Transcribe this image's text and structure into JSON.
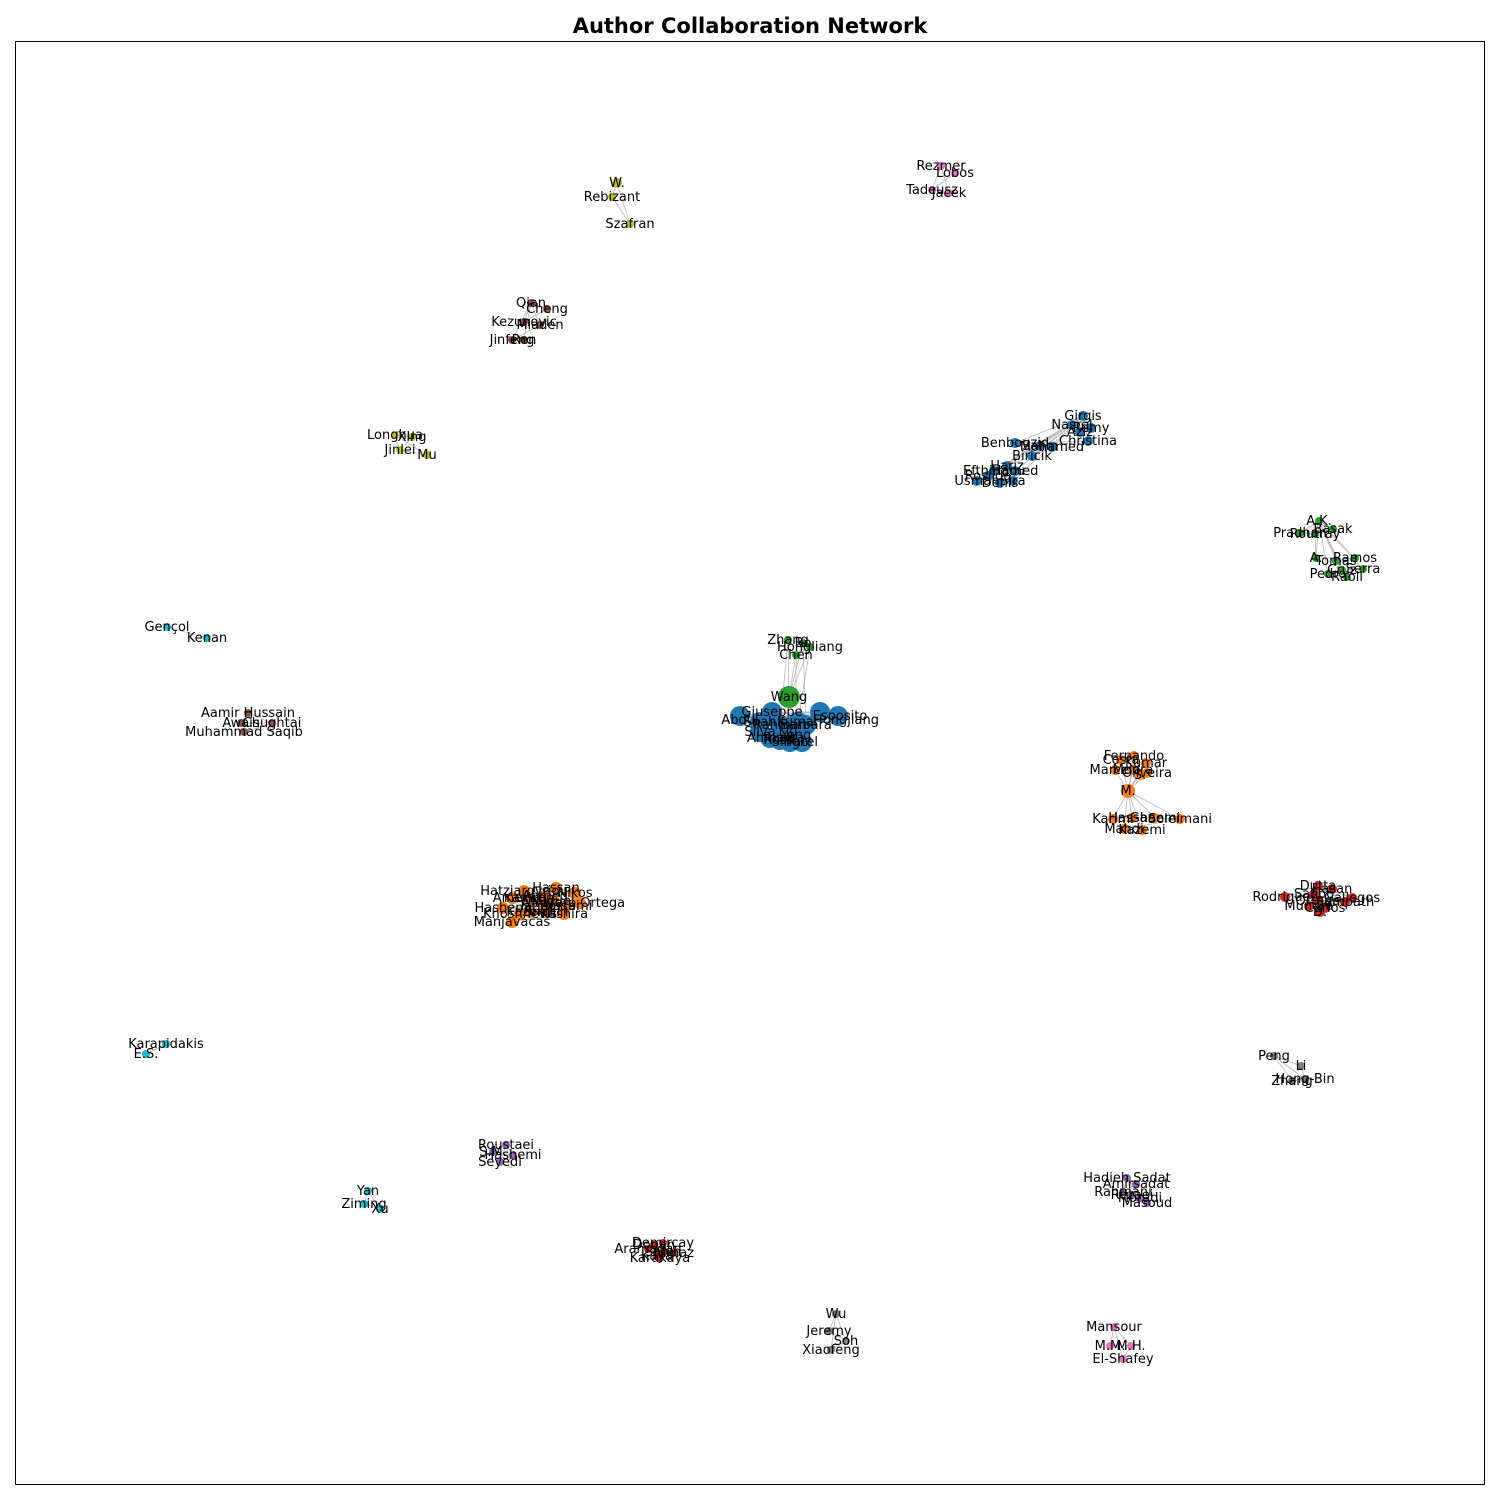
{
  "figure": {
    "title": "Author Collaboration Network"
  },
  "palette": {
    "blue": "#1f77b4",
    "orange": "#ff7f0e",
    "green": "#2ca02c",
    "red": "#d62728",
    "purple": "#9467bd",
    "brown": "#8c564b",
    "pink": "#e377c2",
    "gray": "#7f7f7f",
    "olive": "#bcbd22",
    "cyan": "#17becf",
    "edge": "#b8b8b8",
    "frame": "#000000"
  },
  "clusters": [
    {
      "id": "c-w-rebizant",
      "color": "olive",
      "nodes": [
        {
          "label": "W.",
          "hub": true
        },
        {
          "label": "Rebizant"
        },
        {
          "label": "Szafran"
        }
      ]
    },
    {
      "id": "c-rezmer",
      "color": "pink",
      "nodes": [
        {
          "label": "Rezmer"
        },
        {
          "label": "Lobos"
        },
        {
          "label": "Tadeusz"
        },
        {
          "label": "Jacek"
        }
      ]
    },
    {
      "id": "c-qian",
      "color": "brown",
      "nodes": [
        {
          "label": "Qian"
        },
        {
          "label": "Cheng"
        },
        {
          "label": "Kezunovic"
        },
        {
          "label": "Mladen"
        },
        {
          "label": "Jinfeng"
        },
        {
          "label": "Ren"
        }
      ]
    },
    {
      "id": "c-girgis",
      "color": "blue",
      "nodes": [
        {
          "label": "Girgis"
        },
        {
          "label": "Nasrel"
        },
        {
          "label": "Aziz"
        },
        {
          "label": "Remy"
        },
        {
          "label": "Christina"
        },
        {
          "label": "Benbouzid"
        },
        {
          "label": "Salim"
        },
        {
          "label": "Mohamed"
        },
        {
          "label": "Biricik"
        },
        {
          "label": "Hariz"
        },
        {
          "label": "Efthimiou"
        },
        {
          "label": "Hamed"
        },
        {
          "label": "Rosilda"
        },
        {
          "label": "Usman"
        },
        {
          "label": "Sira"
        },
        {
          "label": "Denis"
        }
      ]
    },
    {
      "id": "c-longhua",
      "color": "olive",
      "nodes": [
        {
          "label": "Longhua"
        },
        {
          "label": "Xing"
        },
        {
          "label": "Jinlei"
        },
        {
          "label": "Mu"
        }
      ]
    },
    {
      "id": "c-ak",
      "color": "green",
      "nodes": [
        {
          "label": "A.K."
        },
        {
          "label": "Basak"
        },
        {
          "label": "Pradhan"
        },
        {
          "label": "Routray"
        },
        {
          "label": "A."
        },
        {
          "label": "Ramos"
        },
        {
          "label": "Tomas"
        },
        {
          "label": "Cruz"
        },
        {
          "label": "Serra"
        },
        {
          "label": "Pedro"
        },
        {
          "label": "Raoll"
        }
      ]
    },
    {
      "id": "c-gencol",
      "color": "cyan",
      "nodes": [
        {
          "label": "Gençol"
        },
        {
          "label": "Kenan"
        }
      ]
    },
    {
      "id": "c-wang",
      "color": "green",
      "nodes": [
        {
          "label": "Zhang"
        },
        {
          "label": "Bo"
        },
        {
          "label": "Hongliang"
        },
        {
          "label": "Chen"
        },
        {
          "label": "Wang",
          "hub": true
        }
      ]
    },
    {
      "id": "c-center",
      "color": "blue",
      "nodes": [
        {
          "label": "Giuseppe"
        },
        {
          "label": "Esposito"
        },
        {
          "label": "Abdul"
        },
        {
          "label": "Hongjiang"
        },
        {
          "label": "Shah"
        },
        {
          "label": "Kumar"
        },
        {
          "label": "Rahman"
        },
        {
          "label": "Barbara"
        },
        {
          "label": "Silva"
        },
        {
          "label": "Liu"
        },
        {
          "label": "Yong"
        },
        {
          "label": "Ahmad"
        },
        {
          "label": "Rossi"
        },
        {
          "label": "Singh"
        },
        {
          "label": "Patel"
        },
        {
          "label": "Rivera"
        }
      ]
    },
    {
      "id": "c-aamir",
      "color": "brown",
      "nodes": [
        {
          "label": "Aamir Hussain"
        },
        {
          "label": "Awais"
        },
        {
          "label": "Chughtai"
        },
        {
          "label": "Muhammad Saqib"
        }
      ]
    },
    {
      "id": "c-fernando",
      "color": "orange",
      "nodes": [
        {
          "label": "Fernando"
        },
        {
          "label": "Costa"
        },
        {
          "label": "Kumar"
        },
        {
          "label": "Marcelo"
        },
        {
          "label": "Moura"
        },
        {
          "label": "Oliveira"
        },
        {
          "label": "S."
        },
        {
          "label": "M.",
          "hub": true
        },
        {
          "label": "Karimi"
        },
        {
          "label": "Hassan"
        },
        {
          "label": "Ghaemi"
        },
        {
          "label": "Soleimani"
        },
        {
          "label": "Mahdi"
        },
        {
          "label": "Kazemi"
        }
      ]
    },
    {
      "id": "c-hassan",
      "color": "orange",
      "nodes": [
        {
          "label": "Hassan"
        },
        {
          "label": "Hatziargyriou"
        },
        {
          "label": "Nikos"
        },
        {
          "label": "Ahmed"
        },
        {
          "label": "Ameri"
        },
        {
          "label": "Kamran"
        },
        {
          "label": "Miguel"
        },
        {
          "label": "Alvaro"
        },
        {
          "label": "Álvaro Ortega"
        },
        {
          "label": "Hashemi"
        },
        {
          "label": "Tahmasbi"
        },
        {
          "label": "Rostami"
        },
        {
          "label": "Kazemi"
        },
        {
          "label": "Shahin"
        },
        {
          "label": "Khoshnevis"
        },
        {
          "label": "Kashira"
        },
        {
          "label": "Manjavacas"
        }
      ]
    },
    {
      "id": "c-dutta",
      "color": "red",
      "nodes": [
        {
          "label": "Dutta"
        },
        {
          "label": "Hasan"
        },
        {
          "label": "Sahoo"
        },
        {
          "label": "Rodriguez"
        },
        {
          "label": "Gallegos"
        },
        {
          "label": "Ortega"
        },
        {
          "label": "Sampath"
        },
        {
          "label": "Mundra"
        },
        {
          "label": "Carlos"
        },
        {
          "label": "D."
        }
      ]
    },
    {
      "id": "c-karapidakis",
      "color": "cyan",
      "nodes": [
        {
          "label": "Karapidakis"
        },
        {
          "label": "E.S."
        }
      ]
    },
    {
      "id": "c-peng",
      "color": "gray",
      "nodes": [
        {
          "label": "Peng"
        },
        {
          "label": "Li"
        },
        {
          "label": "Hong-Bin"
        },
        {
          "label": "Zhang"
        }
      ]
    },
    {
      "id": "c-roustaei",
      "color": "purple",
      "nodes": [
        {
          "label": "Roustaei"
        },
        {
          "label": "S.M."
        },
        {
          "label": "Hashemi"
        },
        {
          "label": "Seyedi"
        }
      ]
    },
    {
      "id": "c-hadieh",
      "color": "purple",
      "nodes": [
        {
          "label": "Hadieh Sadat"
        },
        {
          "label": "Amirsadat"
        },
        {
          "label": "Rahmani"
        },
        {
          "label": "Rezaei"
        },
        {
          "label": "Moradi"
        },
        {
          "label": "Masoud"
        }
      ]
    },
    {
      "id": "c-yan",
      "color": "cyan",
      "nodes": [
        {
          "label": "Yan"
        },
        {
          "label": "Ziming"
        },
        {
          "label": "Xu"
        }
      ]
    },
    {
      "id": "c-dogan",
      "color": "red",
      "nodes": [
        {
          "label": "Dogan"
        },
        {
          "label": "Demircay"
        },
        {
          "label": "Aramagan"
        },
        {
          "label": "Sahin"
        },
        {
          "label": "Yilmaz"
        },
        {
          "label": "Kaya"
        },
        {
          "label": "Karakaya"
        }
      ]
    },
    {
      "id": "c-wu",
      "color": "gray",
      "nodes": [
        {
          "label": "Wu"
        },
        {
          "label": "Jeremy"
        },
        {
          "label": "Soh"
        },
        {
          "label": "Xiaofeng"
        }
      ]
    },
    {
      "id": "c-mansour",
      "color": "pink",
      "nodes": [
        {
          "label": "Mansour"
        },
        {
          "label": "M.M."
        },
        {
          "label": "M.H."
        },
        {
          "label": "El-Shafey"
        }
      ]
    }
  ]
}
